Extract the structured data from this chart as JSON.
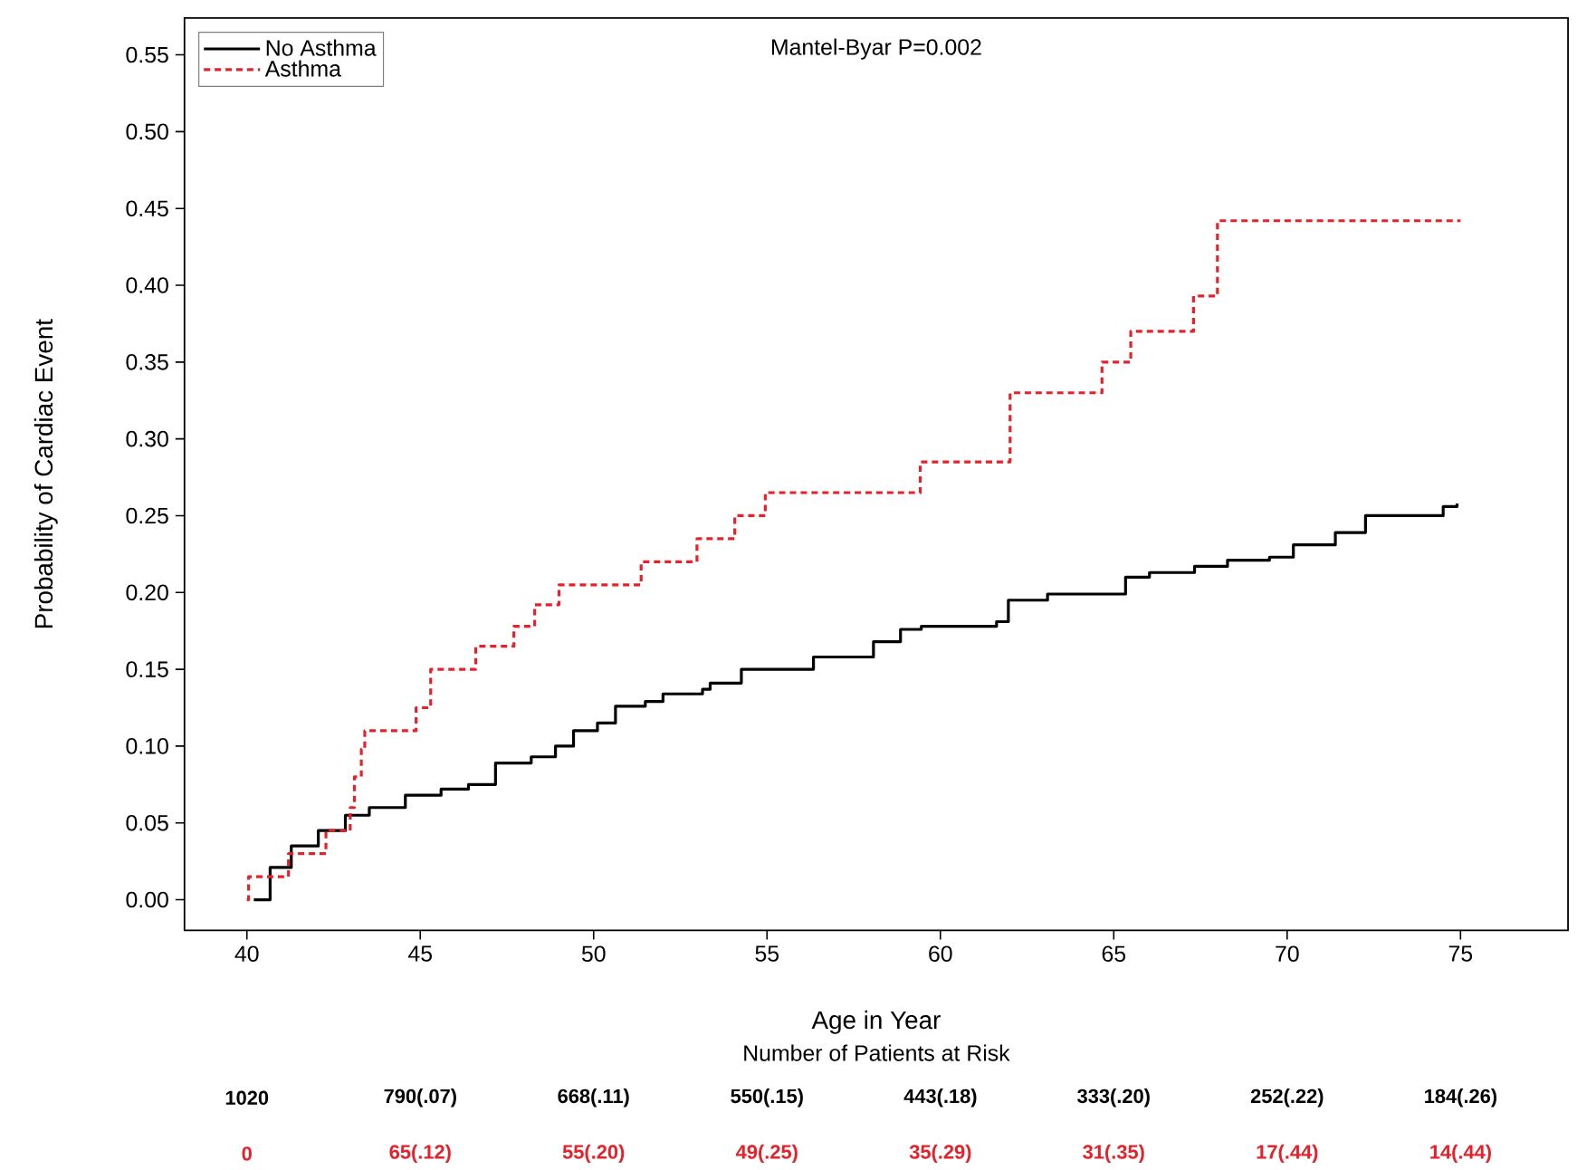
{
  "chart_data": {
    "type": "step",
    "xlabel": "Age in Year",
    "ylabel": "Probability of Cardiac Event",
    "xlim": [
      38.2,
      78.1
    ],
    "ylim": [
      -0.02,
      0.574
    ],
    "xticks": [
      40,
      45,
      50,
      55,
      60,
      65,
      70,
      75
    ],
    "yticks": [
      {
        "value": 0,
        "label": "0.00"
      },
      {
        "value": 0.05,
        "label": "0.05"
      },
      {
        "value": 0.1,
        "label": "0.10"
      },
      {
        "value": 0.15,
        "label": "0.15"
      },
      {
        "value": 0.2,
        "label": "0.20"
      },
      {
        "value": 0.25,
        "label": "0.25"
      },
      {
        "value": 0.3,
        "label": "0.30"
      },
      {
        "value": 0.35,
        "label": "0.35"
      },
      {
        "value": 0.4,
        "label": "0.40"
      },
      {
        "value": 0.45,
        "label": "0.45"
      },
      {
        "value": 0.5,
        "label": "0.50"
      },
      {
        "value": 0.55,
        "label": "0.55"
      }
    ],
    "grid": false,
    "legend": "top left",
    "marker": "none",
    "series": [
      {
        "name": "No Asthma",
        "color": "#000000",
        "line_style": "solid",
        "x": [
          40.2,
          40.67,
          41.28,
          42.06,
          42.84,
          43.53,
          44.57,
          45.6,
          46.39,
          47.17,
          48.2,
          48.9,
          49.42,
          50.11,
          50.63,
          51.49,
          52.0,
          53.14,
          53.36,
          54.26,
          56.34,
          58.07,
          58.85,
          59.45,
          61.62,
          61.96,
          63.09,
          64.56,
          65.34,
          66.03,
          67.33,
          68.28,
          69.49,
          70.18,
          71.39,
          72.26,
          74.25,
          74.5,
          74.9
        ],
        "values": [
          0,
          0.021,
          0.035,
          0.045,
          0.055,
          0.06,
          0.068,
          0.072,
          0.075,
          0.089,
          0.093,
          0.1,
          0.11,
          0.115,
          0.126,
          0.129,
          0.134,
          0.137,
          0.141,
          0.15,
          0.158,
          0.168,
          0.176,
          0.178,
          0.181,
          0.195,
          0.199,
          0.199,
          0.21,
          0.213,
          0.217,
          0.221,
          0.223,
          0.231,
          0.239,
          0.25,
          0.25,
          0.256,
          0.258
        ]
      },
      {
        "name": "Asthma",
        "color": "#e8202a",
        "line_style": "dashed",
        "x": [
          40.0,
          40.05,
          41.2,
          42.28,
          42.98,
          43.1,
          43.3,
          43.4,
          44.88,
          45.3,
          46.6,
          47.7,
          48.3,
          49.0,
          51.37,
          52.98,
          54.07,
          54.95,
          59.42,
          62.01,
          64.66,
          65.49,
          67.3,
          67.99,
          75.0
        ],
        "values": [
          0,
          0.015,
          0.03,
          0.045,
          0.06,
          0.08,
          0.098,
          0.11,
          0.125,
          0.15,
          0.165,
          0.178,
          0.192,
          0.205,
          0.22,
          0.235,
          0.25,
          0.265,
          0.285,
          0.33,
          0.35,
          0.37,
          0.393,
          0.442,
          0.442
        ]
      }
    ],
    "annotations": [
      "Mantel-Byar P=0.002",
      "Number of Patients at Risk",
      "1020",
      "790(.07)",
      "668(.11)",
      "550(.15)",
      "443(.18)",
      "333(.20)",
      "252(.22)",
      "184(.26)",
      "0",
      "65(.12)",
      "55(.20)",
      "49(.25)",
      "35(.29)",
      "31(.35)",
      "17(.44)",
      "14(.44)"
    ]
  }
}
